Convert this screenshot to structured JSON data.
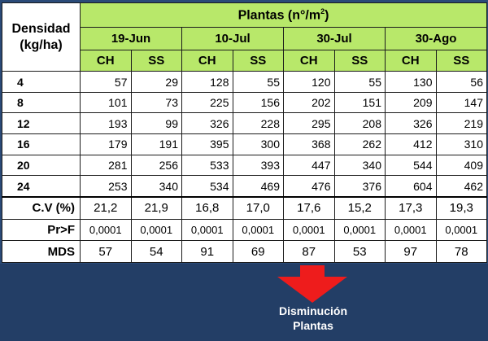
{
  "table": {
    "title_main": "Plantas (n°/m",
    "title_sup": "2",
    "title_close": ")",
    "density_header_line1": "Densidad",
    "density_header_line2": "(kg/ha)",
    "dates": [
      "19-Jun",
      "10-Jul",
      "30-Jul",
      "30-Ago"
    ],
    "sub_headers": [
      "CH",
      "SS",
      "CH",
      "SS",
      "CH",
      "SS",
      "CH",
      "SS"
    ],
    "rows": [
      {
        "density": "4",
        "values": [
          "57",
          "29",
          "128",
          "55",
          "120",
          "55",
          "130",
          "56"
        ]
      },
      {
        "density": "8",
        "values": [
          "101",
          "73",
          "225",
          "156",
          "202",
          "151",
          "209",
          "147"
        ]
      },
      {
        "density": "12",
        "values": [
          "193",
          "99",
          "326",
          "228",
          "295",
          "208",
          "326",
          "219"
        ]
      },
      {
        "density": "16",
        "values": [
          "179",
          "191",
          "395",
          "300",
          "368",
          "262",
          "412",
          "310"
        ]
      },
      {
        "density": "20",
        "values": [
          "281",
          "256",
          "533",
          "393",
          "447",
          "340",
          "544",
          "409"
        ]
      },
      {
        "density": "24",
        "values": [
          "253",
          "340",
          "534",
          "469",
          "476",
          "376",
          "604",
          "462"
        ]
      }
    ],
    "stats": [
      {
        "label": "C.V (%)",
        "values": [
          "21,2",
          "21,9",
          "16,8",
          "17,0",
          "17,6",
          "15,2",
          "17,3",
          "19,3"
        ]
      },
      {
        "label": "Pr>F",
        "values": [
          "0,0001",
          "0,0001",
          "0,0001",
          "0,0001",
          "0,0001",
          "0,0001",
          "0,0001",
          "0,0001"
        ]
      },
      {
        "label": "MDS",
        "values": [
          "57",
          "54",
          "91",
          "69",
          "87",
          "53",
          "97",
          "78"
        ]
      }
    ]
  },
  "caption": {
    "line1": "Disminución",
    "line2": "Plantas"
  },
  "colors": {
    "header_green": "#b8e86a",
    "background_blue": "#233e66",
    "arrow_red": "#ee1c1c"
  },
  "icons": {
    "arrow": "down-arrow-icon"
  }
}
